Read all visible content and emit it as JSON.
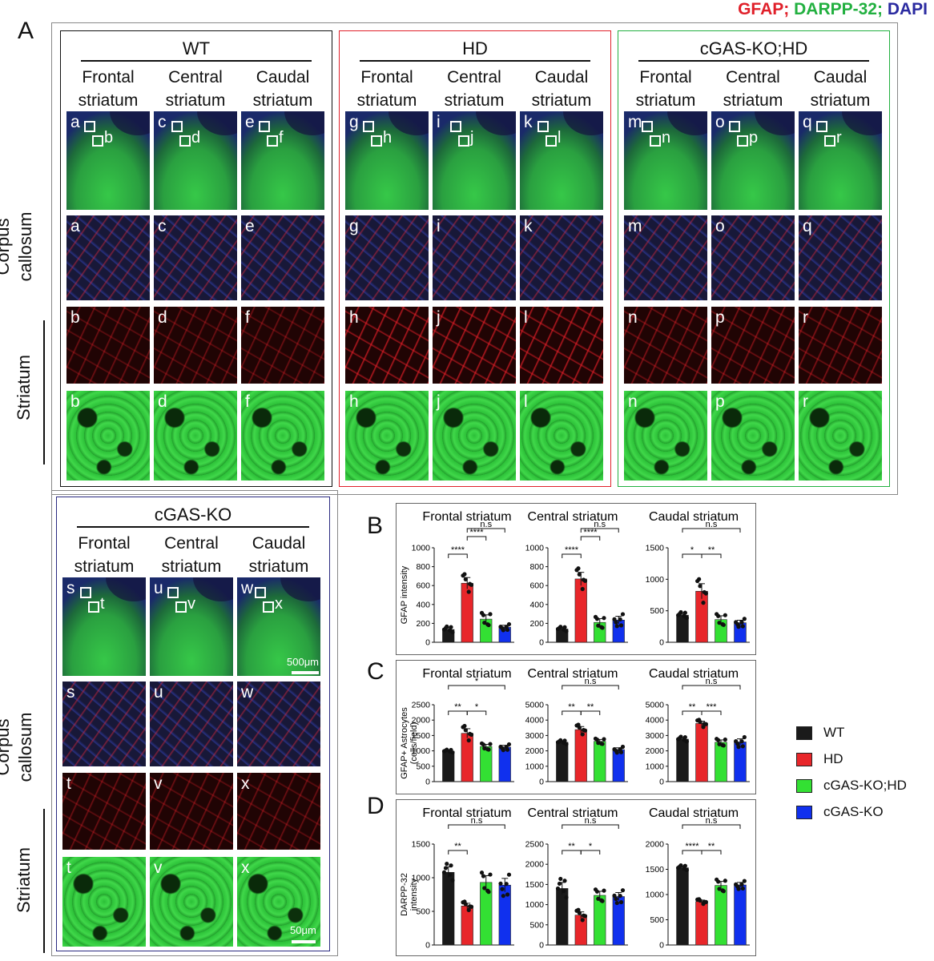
{
  "legend_title": {
    "gfap": "GFAP;",
    "darpp": "DARPP-32;",
    "dapi": "DAPI",
    "gfap_color": "#e0202a",
    "darpp_color": "#22b040",
    "dapi_color": "#2a2aa0"
  },
  "panel_letters": {
    "A": "A",
    "B": "B",
    "C": "C",
    "D": "D"
  },
  "groups": {
    "wt": {
      "title": "WT",
      "frame": "#111111"
    },
    "hd": {
      "title": "HD",
      "frame": "#e0202a"
    },
    "cgas_hd": {
      "title": "cGAS-KO;HD",
      "frame": "#22b040"
    },
    "cgas_ko": {
      "title": "cGAS-KO",
      "frame": "#2a2a80"
    }
  },
  "col_heads": [
    "Frontal\nstriatum",
    "Central\nstriatum",
    "Caudal\nstriatum"
  ],
  "side_labels": {
    "corpus": "Corpus\ncallosum",
    "striatum": "Striatum"
  },
  "image_labels": {
    "wt": {
      "ov": [
        [
          "a",
          "b"
        ],
        [
          "c",
          "d"
        ],
        [
          "e",
          "f"
        ]
      ],
      "row2": [
        "a",
        "c",
        "e"
      ],
      "row3": [
        "b",
        "d",
        "f"
      ],
      "row4": [
        "b",
        "d",
        "f"
      ]
    },
    "hd": {
      "ov": [
        [
          "g",
          "h"
        ],
        [
          "i",
          "j"
        ],
        [
          "k",
          "l"
        ]
      ],
      "row2": [
        "g",
        "i",
        "k"
      ],
      "row3": [
        "h",
        "j",
        "l"
      ],
      "row4": [
        "h",
        "j",
        "l"
      ]
    },
    "cgas_hd": {
      "ov": [
        [
          "m",
          "n"
        ],
        [
          "o",
          "p"
        ],
        [
          "q",
          "r"
        ]
      ],
      "row2": [
        "m",
        "o",
        "q"
      ],
      "row3": [
        "n",
        "p",
        "r"
      ],
      "row4": [
        "n",
        "p",
        "r"
      ]
    },
    "cgas_ko": {
      "ov": [
        [
          "s",
          "t"
        ],
        [
          "u",
          "v"
        ],
        [
          "w",
          "x"
        ]
      ],
      "row2": [
        "s",
        "u",
        "w"
      ],
      "row3": [
        "t",
        "v",
        "x"
      ],
      "row4": [
        "t",
        "v",
        "x"
      ]
    }
  },
  "scale_bars": {
    "overview": "500μm",
    "zoom": "50μm"
  },
  "legend": [
    {
      "label": "WT",
      "color": "#1a1a1a"
    },
    {
      "label": "HD",
      "color": "#e8262a"
    },
    {
      "label": "cGAS-KO;HD",
      "color": "#33e033"
    },
    {
      "label": "cGAS-KO",
      "color": "#1030ee"
    }
  ],
  "chart_data": [
    {
      "panel": "B",
      "type": "bar",
      "title": "Frontal striatum",
      "ylabel": "GFAP intensity",
      "categories": [
        "WT",
        "HD",
        "cGAS-KO;HD",
        "cGAS-KO"
      ],
      "values": [
        135,
        625,
        245,
        160
      ],
      "errors": [
        20,
        60,
        45,
        20
      ],
      "ylim": [
        0,
        1000
      ],
      "yticks": [
        0,
        200,
        400,
        600,
        800,
        1000
      ],
      "sig": [
        {
          "from": 0,
          "to": 1,
          "label": "****",
          "level": 1
        },
        {
          "from": 1,
          "to": 2,
          "label": "****",
          "level": 2
        },
        {
          "from": 1,
          "to": 3,
          "label": "n.s",
          "level": 3
        }
      ]
    },
    {
      "panel": "B",
      "type": "bar",
      "title": "Central striatum",
      "ylabel": "",
      "categories": [
        "WT",
        "HD",
        "cGAS-KO;HD",
        "cGAS-KO"
      ],
      "values": [
        140,
        670,
        210,
        235
      ],
      "errors": [
        15,
        70,
        40,
        40
      ],
      "ylim": [
        0,
        1000
      ],
      "yticks": [
        0,
        200,
        400,
        600,
        800,
        1000
      ],
      "sig": [
        {
          "from": 0,
          "to": 1,
          "label": "****",
          "level": 1
        },
        {
          "from": 1,
          "to": 2,
          "label": "****",
          "level": 2
        },
        {
          "from": 1,
          "to": 3,
          "label": "n.s",
          "level": 3
        }
      ]
    },
    {
      "panel": "B",
      "type": "bar",
      "title": "Caudal striatum",
      "ylabel": "",
      "categories": [
        "WT",
        "HD",
        "cGAS-KO;HD",
        "cGAS-KO"
      ],
      "values": [
        430,
        810,
        360,
        310
      ],
      "errors": [
        30,
        120,
        60,
        40
      ],
      "ylim": [
        0,
        1500
      ],
      "yticks": [
        0,
        500,
        1000,
        1500
      ],
      "sig": [
        {
          "from": 0,
          "to": 1,
          "label": "*",
          "level": 1
        },
        {
          "from": 1,
          "to": 2,
          "label": "**",
          "level": 1
        },
        {
          "from": 0,
          "to": 3,
          "label": "n.s",
          "level": 3
        }
      ]
    },
    {
      "panel": "C",
      "type": "bar",
      "title": "Frontal striatum",
      "ylabel": "GFAP+ Astrocytes\n(cells/field)",
      "categories": [
        "WT",
        "HD",
        "cGAS-KO;HD",
        "cGAS-KO"
      ],
      "values": [
        990,
        1570,
        1140,
        1120
      ],
      "errors": [
        30,
        150,
        70,
        60
      ],
      "ylim": [
        0,
        2500
      ],
      "yticks": [
        0,
        500,
        1000,
        1500,
        2000,
        2500
      ],
      "sig": [
        {
          "from": 0,
          "to": 1,
          "label": "**",
          "level": 1
        },
        {
          "from": 1,
          "to": 2,
          "label": "*",
          "level": 1
        },
        {
          "from": 0,
          "to": 3,
          "label": "*",
          "level": 3
        }
      ]
    },
    {
      "panel": "C",
      "type": "bar",
      "title": "Central striatum",
      "ylabel": "",
      "categories": [
        "WT",
        "HD",
        "cGAS-KO;HD",
        "cGAS-KO"
      ],
      "values": [
        2560,
        3380,
        2620,
        2080
      ],
      "errors": [
        80,
        200,
        120,
        120
      ],
      "ylim": [
        0,
        5000
      ],
      "yticks": [
        0,
        1000,
        2000,
        3000,
        4000,
        5000
      ],
      "sig": [
        {
          "from": 0,
          "to": 1,
          "label": "**",
          "level": 1
        },
        {
          "from": 1,
          "to": 2,
          "label": "**",
          "level": 1
        },
        {
          "from": 0,
          "to": 3,
          "label": "n.s",
          "level": 3
        }
      ]
    },
    {
      "panel": "C",
      "type": "bar",
      "title": "Caudal striatum",
      "ylabel": "",
      "categories": [
        "WT",
        "HD",
        "cGAS-KO;HD",
        "cGAS-KO"
      ],
      "values": [
        2760,
        3780,
        2560,
        2580
      ],
      "errors": [
        100,
        150,
        150,
        200
      ],
      "ylim": [
        0,
        5000
      ],
      "yticks": [
        0,
        1000,
        2000,
        3000,
        4000,
        5000
      ],
      "sig": [
        {
          "from": 0,
          "to": 1,
          "label": "**",
          "level": 1
        },
        {
          "from": 1,
          "to": 2,
          "label": "***",
          "level": 1
        },
        {
          "from": 0,
          "to": 3,
          "label": "n.s",
          "level": 3
        }
      ]
    },
    {
      "panel": "D",
      "type": "bar",
      "title": "Frontal striatum",
      "ylabel": "DARPP-32\nintensity",
      "categories": [
        "WT",
        "HD",
        "cGAS-KO;HD",
        "cGAS-KO"
      ],
      "values": [
        1080,
        580,
        930,
        890
      ],
      "errors": [
        80,
        40,
        100,
        100
      ],
      "ylim": [
        0,
        1500
      ],
      "yticks": [
        0,
        500,
        1000,
        1500
      ],
      "sig": [
        {
          "from": 0,
          "to": 1,
          "label": "**",
          "level": 1
        },
        {
          "from": 0,
          "to": 3,
          "label": "n.s",
          "level": 3
        }
      ]
    },
    {
      "panel": "D",
      "type": "bar",
      "title": "Central striatum",
      "ylabel": "",
      "categories": [
        "WT",
        "HD",
        "cGAS-KO;HD",
        "cGAS-KO"
      ],
      "values": [
        1400,
        740,
        1230,
        1200
      ],
      "errors": [
        150,
        80,
        100,
        100
      ],
      "ylim": [
        0,
        2500
      ],
      "yticks": [
        0,
        500,
        1000,
        1500,
        2000,
        2500
      ],
      "sig": [
        {
          "from": 0,
          "to": 1,
          "label": "**",
          "level": 1
        },
        {
          "from": 1,
          "to": 2,
          "label": "*",
          "level": 1
        },
        {
          "from": 0,
          "to": 3,
          "label": "n.s",
          "level": 3
        }
      ]
    },
    {
      "panel": "D",
      "type": "bar",
      "title": "Caudal striatum",
      "ylabel": "",
      "categories": [
        "WT",
        "HD",
        "cGAS-KO;HD",
        "cGAS-KO"
      ],
      "values": [
        1530,
        860,
        1180,
        1190
      ],
      "errors": [
        30,
        30,
        80,
        50
      ],
      "ylim": [
        0,
        2000
      ],
      "yticks": [
        0,
        500,
        1000,
        1500,
        2000
      ],
      "sig": [
        {
          "from": 0,
          "to": 1,
          "label": "****",
          "level": 1
        },
        {
          "from": 1,
          "to": 2,
          "label": "**",
          "level": 1
        },
        {
          "from": 0,
          "to": 3,
          "label": "n.s",
          "level": 3
        }
      ]
    }
  ]
}
